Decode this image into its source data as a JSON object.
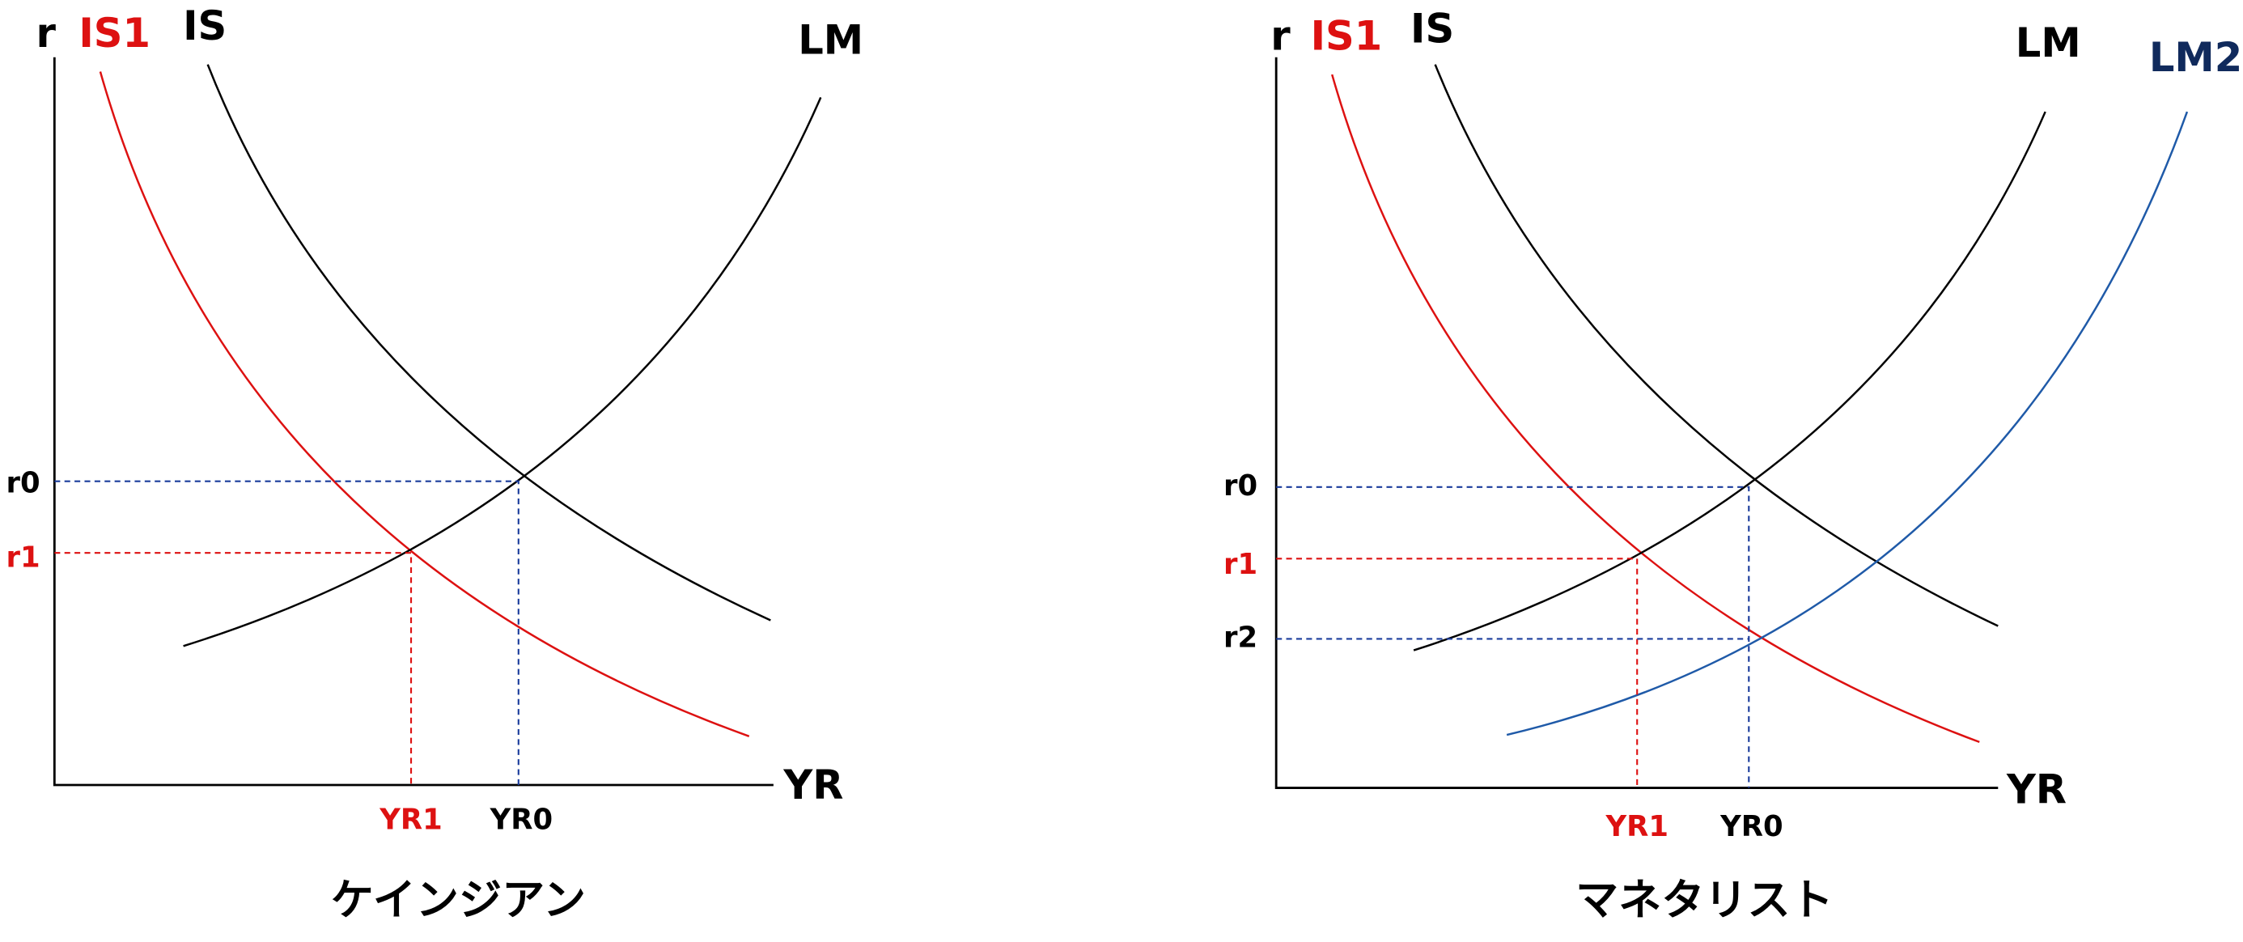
{
  "panels": [
    {
      "y_axis": "r",
      "x_axis": "YR",
      "curves": {
        "is1": "IS1",
        "is": "IS",
        "lm": "LM"
      },
      "rates": {
        "r0": "r0",
        "r1": "r1"
      },
      "outputs": {
        "yr1": "YR1",
        "yr0": "YR0"
      },
      "caption": "ケインジアン"
    },
    {
      "y_axis": "r",
      "x_axis": "YR",
      "curves": {
        "is1": "IS1",
        "is": "IS",
        "lm": "LM",
        "lm2": "LM2"
      },
      "rates": {
        "r0": "r0",
        "r1": "r1",
        "r2": "r2"
      },
      "outputs": {
        "yr1": "YR1",
        "yr0": "YR0"
      },
      "caption": "マネタリスト"
    }
  ]
}
